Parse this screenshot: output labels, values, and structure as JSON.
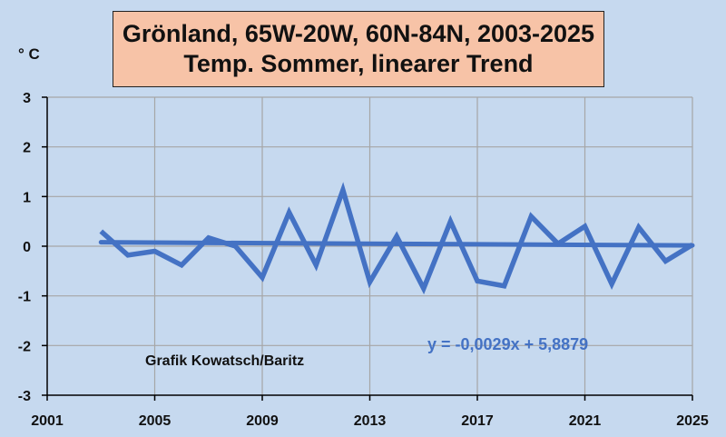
{
  "chart_data": {
    "type": "line",
    "title_lines": [
      "Grönland, 65W-20W, 60N-84N, 2003-2025",
      "Temp. Sommer, linearer Trend"
    ],
    "ylabel": "° C",
    "xlim": [
      2001,
      2025
    ],
    "ylim": [
      -3,
      3
    ],
    "x_ticks": [
      2001,
      2005,
      2009,
      2013,
      2017,
      2021,
      2025
    ],
    "y_ticks": [
      3,
      2,
      1,
      0,
      -1,
      -2,
      -3
    ],
    "grid": true,
    "x": [
      2003,
      2004,
      2005,
      2006,
      2007,
      2008,
      2009,
      2010,
      2011,
      2012,
      2013,
      2014,
      2015,
      2016,
      2017,
      2018,
      2019,
      2020,
      2021,
      2022,
      2023,
      2024,
      2025
    ],
    "series": [
      {
        "values": [
          0.3,
          -0.18,
          -0.1,
          -0.38,
          0.17,
          0.0,
          -0.63,
          0.68,
          -0.38,
          1.13,
          -0.72,
          0.2,
          -0.85,
          0.5,
          -0.7,
          -0.8,
          0.6,
          0.05,
          0.4,
          -0.76,
          0.38,
          -0.3,
          0.03
        ],
        "color": "#4472c4"
      }
    ],
    "trend": {
      "slope": -0.0029,
      "intercept": 5.8879,
      "equation": "y = -0,0029x + 5,8879",
      "color": "#4472c4"
    },
    "annotations": [
      "Grafik Kowatsch/Baritz"
    ],
    "colors": {
      "background": "#c6d9ef",
      "title_box": "#f7c3a7",
      "grid": "#a6a6a6",
      "axis": "#000000"
    }
  }
}
